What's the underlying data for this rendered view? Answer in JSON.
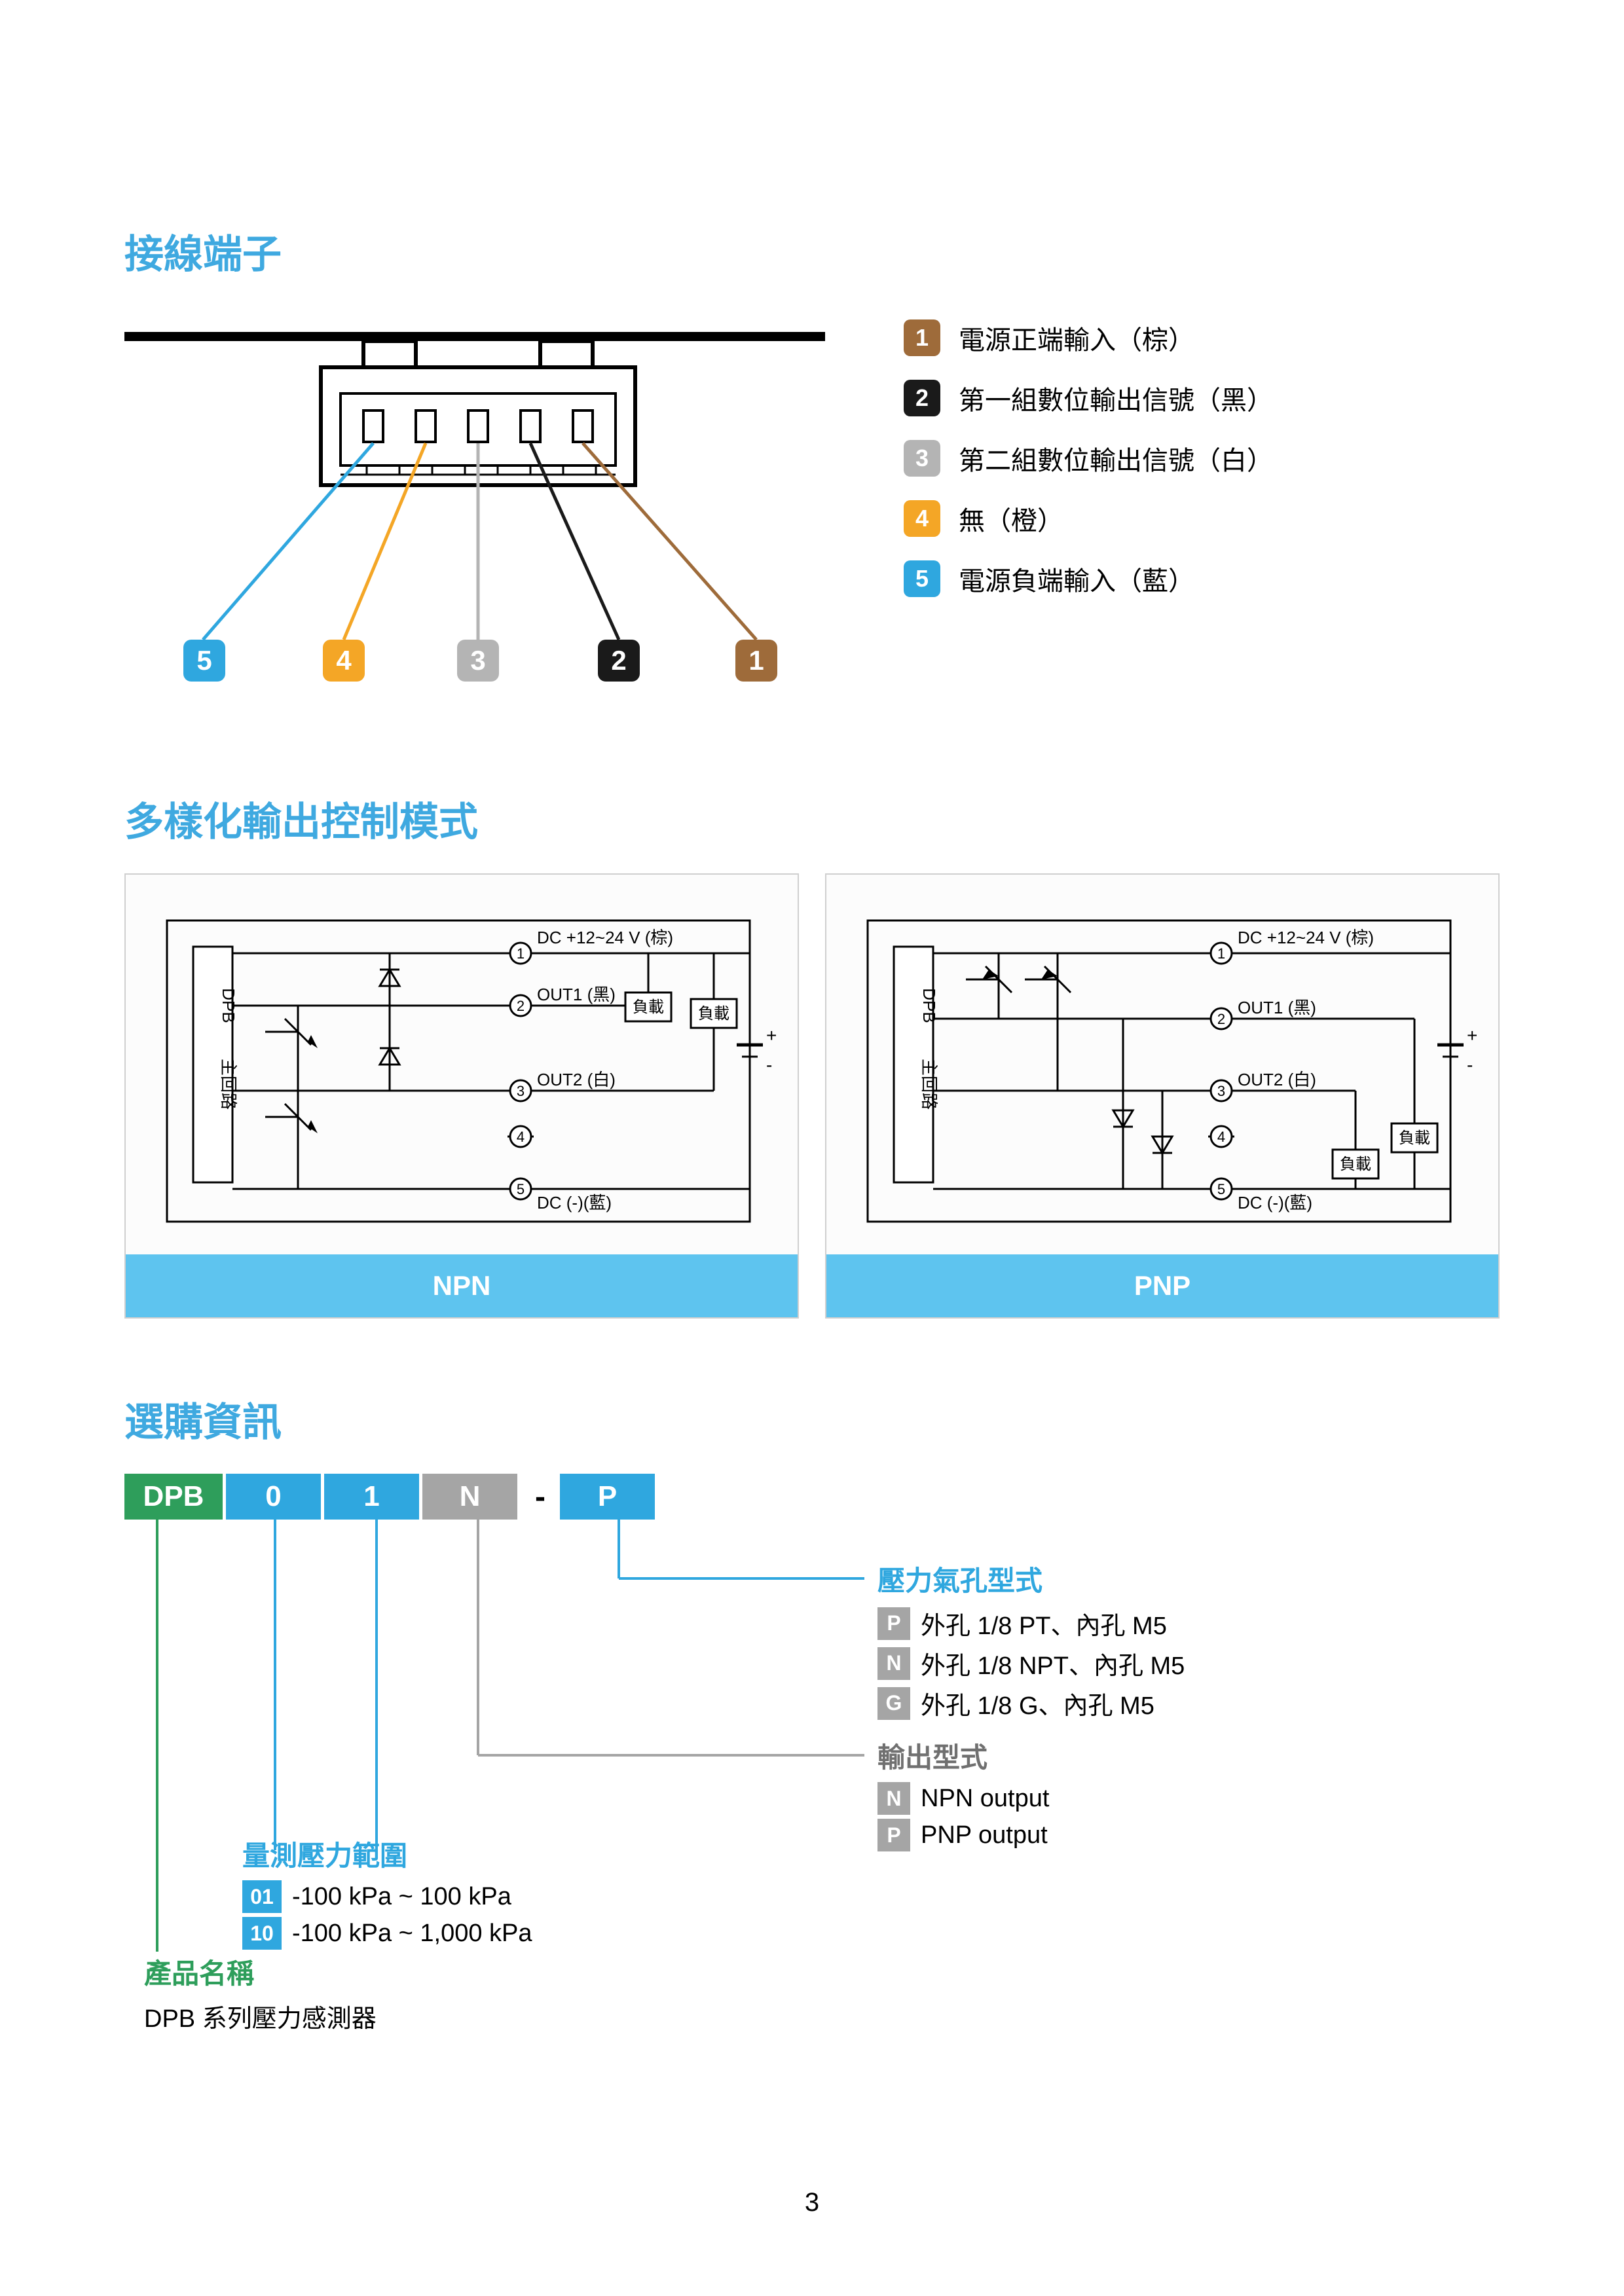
{
  "colors": {
    "heading": "#3fa9e0",
    "brown": "#9e6b3a",
    "black": "#1a1a1a",
    "grey": "#b4b4b4",
    "orange": "#f4a626",
    "blue": "#2fa7df",
    "green": "#2e9e5b",
    "footer": "#5ec4ef"
  },
  "section1": {
    "title": "接線端子",
    "pins": [
      {
        "n": "1",
        "color": "#9e6b3a",
        "text": "電源正端輸入（棕）"
      },
      {
        "n": "2",
        "color": "#1a1a1a",
        "text": "第一組數位輸出信號（黑）"
      },
      {
        "n": "3",
        "color": "#b4b4b4",
        "text": "第二組數位輸出信號（白）"
      },
      {
        "n": "4",
        "color": "#f4a626",
        "text": "無（橙）"
      },
      {
        "n": "5",
        "color": "#2fa7df",
        "text": "電源負端輸入（藍）"
      }
    ],
    "diagram_label_order": [
      "5",
      "4",
      "3",
      "2",
      "1"
    ],
    "diagram_colors": [
      "#2fa7df",
      "#f4a626",
      "#b4b4b4",
      "#1a1a1a",
      "#9e6b3a"
    ]
  },
  "section2": {
    "title": "多樣化輸出控制模式",
    "cards": [
      {
        "footer": "NPN"
      },
      {
        "footer": "PNP"
      }
    ],
    "labels": {
      "main": "DPB 主回路",
      "dc_plus": "DC +12~24 V (棕)",
      "out1": "OUT1 (黑)",
      "out2": "OUT2 (白)",
      "dc_minus": "DC (-)(藍)",
      "load": "負載",
      "pin1": "1",
      "pin2": "2",
      "pin3": "3",
      "pin4": "4",
      "pin5": "5"
    }
  },
  "section3": {
    "title": "選購資訊",
    "code": [
      {
        "t": "DPB",
        "w": 155,
        "bg": "#2e9e5b"
      },
      {
        "t": "0",
        "w": 150,
        "bg": "#2fa7df"
      },
      {
        "t": "1",
        "w": 150,
        "bg": "#2fa7df"
      },
      {
        "t": "N",
        "w": 150,
        "bg": "#a5a5a5"
      },
      {
        "t": "-",
        "w": 60,
        "bg": "transparent",
        "dash": true
      },
      {
        "t": "P",
        "w": 150,
        "bg": "#2fa7df"
      }
    ],
    "groups": {
      "port": {
        "title": "壓力氣孔型式",
        "title_color": "#2fa7df",
        "items": [
          {
            "k": "P",
            "kbg": "#a5a5a5",
            "t": "外孔 1/8 PT、內孔 M5"
          },
          {
            "k": "N",
            "kbg": "#a5a5a5",
            "t": "外孔 1/8 NPT、內孔 M5"
          },
          {
            "k": "G",
            "kbg": "#a5a5a5",
            "t": "外孔 1/8 G、內孔 M5"
          }
        ]
      },
      "output": {
        "title": "輸出型式",
        "title_color": "#707070",
        "items": [
          {
            "k": "N",
            "kbg": "#a5a5a5",
            "t": "NPN output"
          },
          {
            "k": "P",
            "kbg": "#a5a5a5",
            "t": "PNP output"
          }
        ]
      },
      "range": {
        "title": "量測壓力範圍",
        "title_color": "#2fa7df",
        "items": [
          {
            "k": "01",
            "kbg": "#2fa7df",
            "t": "-100 kPa ~ 100 kPa"
          },
          {
            "k": "10",
            "kbg": "#2fa7df",
            "t": "-100 kPa ~ 1,000 kPa"
          }
        ]
      },
      "name": {
        "title": "產品名稱",
        "title_color": "#2e9e5b",
        "sub": "DPB 系列壓力感測器"
      }
    }
  },
  "page_number": "3"
}
